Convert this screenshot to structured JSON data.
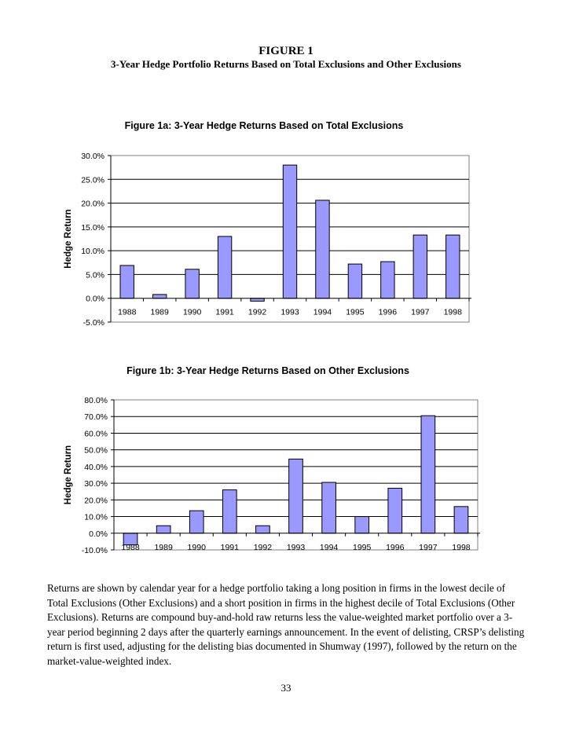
{
  "figure": {
    "title": "FIGURE 1",
    "subtitle": "3-Year Hedge Portfolio Returns Based on Total Exclusions and Other Exclusions"
  },
  "chart_data": [
    {
      "type": "bar",
      "title": "Figure 1a: 3-Year Hedge Returns Based on Total Exclusions",
      "xlabel": "",
      "ylabel": "Hedge Return",
      "categories": [
        "1988",
        "1989",
        "1990",
        "1991",
        "1992",
        "1993",
        "1994",
        "1995",
        "1996",
        "1997",
        "1998"
      ],
      "values": [
        6.9,
        0.8,
        6.1,
        13.0,
        -0.6,
        28.0,
        20.6,
        7.2,
        7.7,
        13.3,
        13.3
      ],
      "ylim": [
        -5,
        30
      ],
      "yticks": [
        "-5.0%",
        "0.0%",
        "5.0%",
        "10.0%",
        "15.0%",
        "20.0%",
        "25.0%",
        "30.0%"
      ],
      "grid": true,
      "bar_color": "#9999ff"
    },
    {
      "type": "bar",
      "title": "Figure 1b: 3-Year Hedge Returns Based on Other Exclusions",
      "xlabel": "",
      "ylabel": "Hedge Return",
      "categories": [
        "1988",
        "1989",
        "1990",
        "1991",
        "1992",
        "1993",
        "1994",
        "1995",
        "1996",
        "1997",
        "1998"
      ],
      "values": [
        -7.0,
        4.5,
        13.5,
        26.0,
        4.5,
        44.5,
        30.5,
        10.0,
        27.0,
        70.5,
        16.0
      ],
      "ylim": [
        -10,
        80
      ],
      "yticks": [
        "-10.0%",
        "0.0%",
        "10.0%",
        "20.0%",
        "30.0%",
        "40.0%",
        "50.0%",
        "60.0%",
        "70.0%",
        "80.0%"
      ],
      "grid": true,
      "bar_color": "#9999ff"
    }
  ],
  "caption": "Returns are shown by calendar year for a hedge portfolio taking a long position in firms in the lowest decile of Total Exclusions (Other Exclusions) and a short position in firms in the highest decile of Total Exclusions (Other Exclusions). Returns are compound buy-and-hold raw returns less the value-weighted market portfolio over a 3-year period beginning 2 days after the quarterly earnings announcement. In the event of delisting, CRSP’s delisting return is first used, adjusting for the delisting bias documented in Shumway (1997), followed by the return on the market-value-weighted index.",
  "page_number": "33"
}
